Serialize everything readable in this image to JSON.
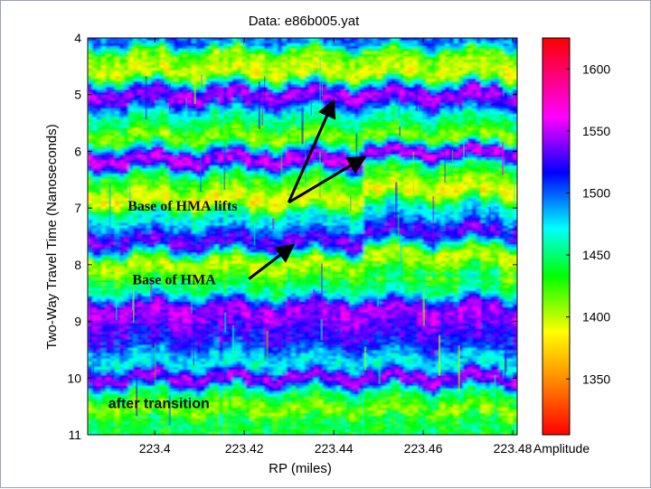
{
  "chart_data": {
    "type": "heatmap",
    "title": "Data:  e86b005.yat",
    "xlabel": "RP (miles)",
    "ylabel": "Two-Way Travel Time (Nanoseconds)",
    "xlim": [
      223.385,
      223.481
    ],
    "ylim": [
      4,
      11
    ],
    "y_inverted": true,
    "x_ticks": [
      223.4,
      223.42,
      223.44,
      223.46,
      223.48
    ],
    "x_tick_labels": [
      "223.4",
      "223.42",
      "223.44",
      "223.46",
      "223.48"
    ],
    "y_ticks": [
      4,
      5,
      6,
      7,
      8,
      9,
      10,
      11
    ],
    "y_tick_labels": [
      "4",
      "5",
      "6",
      "7",
      "8",
      "9",
      "10",
      "11"
    ],
    "colorbar": {
      "label": "Amplitude",
      "range": [
        1305,
        1625
      ],
      "ticks": [
        1350,
        1400,
        1450,
        1500,
        1550,
        1600
      ],
      "tick_labels": [
        "1350",
        "1400",
        "1450",
        "1500",
        "1550",
        "1600"
      ],
      "colormap": [
        "#ff0000",
        "#ff8c00",
        "#ffff00",
        "#00ff00",
        "#00ffff",
        "#0000ff",
        "#ff00ff",
        "#ff0000"
      ]
    },
    "bands": [
      {
        "t": 4.05,
        "amplitude": 1500
      },
      {
        "t": 4.3,
        "amplitude": 1415
      },
      {
        "t": 4.6,
        "amplitude": 1395
      },
      {
        "t": 5.0,
        "amplitude": 1545
      },
      {
        "t": 5.45,
        "amplitude": 1450
      },
      {
        "t": 5.75,
        "amplitude": 1410
      },
      {
        "t": 6.15,
        "amplitude": 1550
      },
      {
        "t": 6.5,
        "amplitude": 1430
      },
      {
        "t": 6.85,
        "amplitude": 1390
      },
      {
        "t": 7.2,
        "amplitude": 1470
      },
      {
        "t": 7.6,
        "amplitude": 1530
      },
      {
        "t": 8.0,
        "amplitude": 1400
      },
      {
        "t": 8.4,
        "amplitude": 1445
      },
      {
        "t": 8.8,
        "amplitude": 1545
      },
      {
        "t": 9.3,
        "amplitude": 1520
      },
      {
        "t": 9.75,
        "amplitude": 1470
      },
      {
        "t": 10.0,
        "amplitude": 1545
      },
      {
        "t": 10.3,
        "amplitude": 1440
      },
      {
        "t": 10.55,
        "amplitude": 1410
      },
      {
        "t": 10.75,
        "amplitude": 1440
      }
    ],
    "annotations": [
      {
        "text": "Base of HMA lifts",
        "x": 223.4,
        "y": 6.95,
        "arrows_to": [
          [
            223.44,
            5.1
          ],
          [
            223.447,
            6.1
          ]
        ]
      },
      {
        "text": "Base of HMA",
        "x": 223.398,
        "y": 8.25,
        "arrows_to": [
          [
            223.431,
            7.65
          ]
        ]
      },
      {
        "text": "after transition",
        "x": 223.39,
        "y": 10.5
      }
    ]
  }
}
